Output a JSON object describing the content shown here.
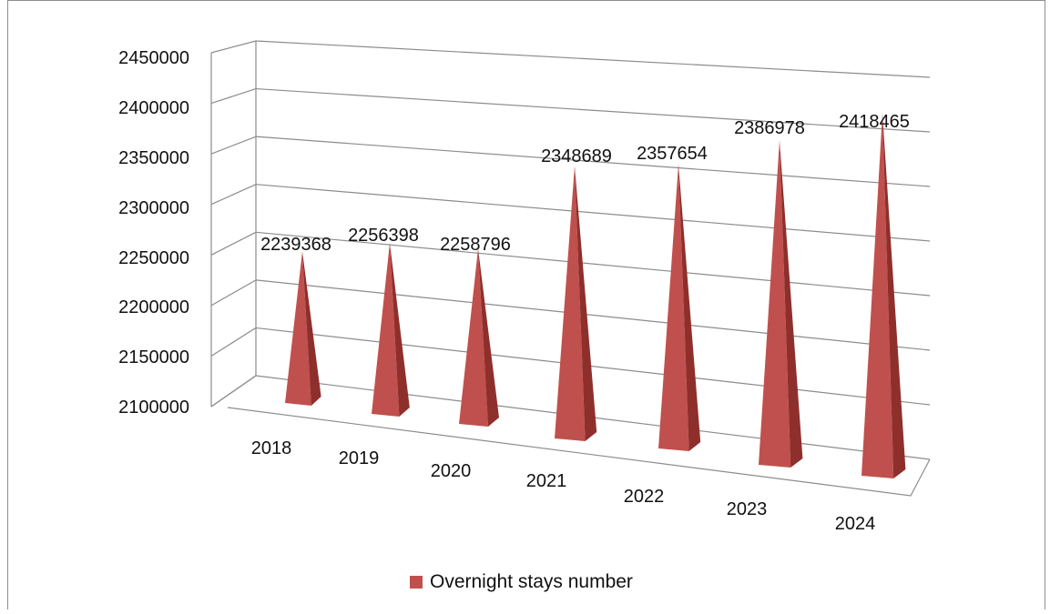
{
  "chart_data": {
    "type": "bar",
    "bar_shape": "cone/pyramid (3D)",
    "categories": [
      "2018",
      "2019",
      "2020",
      "2021",
      "2022",
      "2023",
      "2024"
    ],
    "series": [
      {
        "name": "Overnight stays number",
        "values": [
          2239368,
          2256398,
          2258796,
          2348689,
          2357654,
          2386978,
          2418465
        ]
      }
    ],
    "data_labels": [
      "2239368",
      "2256398",
      "2258796",
      "2348689",
      "2357654",
      "2386978",
      "2418465"
    ],
    "y_ticks": [
      "2100000",
      "2150000",
      "2200000",
      "2250000",
      "2300000",
      "2350000",
      "2400000",
      "2450000"
    ],
    "ylim": [
      2100000,
      2450000
    ],
    "grid": true,
    "legend_position": "bottom",
    "title": "",
    "xlabel": "",
    "ylabel": "",
    "colors": {
      "bar": "#c0504d",
      "bar_dark": "#8e2f2c",
      "grid": "#8c8c8c"
    }
  },
  "legend": {
    "label": "Overnight stays number"
  }
}
